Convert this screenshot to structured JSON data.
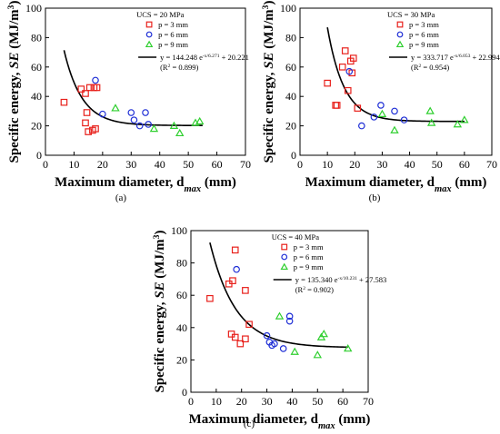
{
  "panels": {
    "a": {
      "label": "(a)"
    },
    "b": {
      "label": "(b)"
    },
    "c": {
      "label": "(c)"
    }
  },
  "chart_data": [
    {
      "id": "a",
      "type": "scatter",
      "xlabel": "Maximum diameter, d_max (mm)",
      "ylabel": "Specific energy, SE (MJ/m^3)",
      "xlim": [
        0,
        70
      ],
      "ylim": [
        0,
        100
      ],
      "xticks": [
        0,
        10,
        20,
        30,
        40,
        50,
        60,
        70
      ],
      "yticks": [
        0,
        20,
        40,
        60,
        80,
        100
      ],
      "grid": false,
      "legend_position": "top-right",
      "legend_title": "UCS = 20 MPa",
      "series": [
        {
          "name": "p = 3 mm",
          "marker": "square",
          "color": "#e8201b",
          "points": [
            [
              6.5,
              36
            ],
            [
              12.5,
              45
            ],
            [
              14,
              42
            ],
            [
              14,
              22
            ],
            [
              14.5,
              29
            ],
            [
              15,
              16
            ],
            [
              15.5,
              46
            ],
            [
              16.5,
              17
            ],
            [
              17,
              46
            ],
            [
              17.5,
              18
            ],
            [
              18,
              46
            ]
          ]
        },
        {
          "name": "p = 6 mm",
          "marker": "circle",
          "color": "#1f2fd6",
          "points": [
            [
              17.5,
              51
            ],
            [
              20,
              28
            ],
            [
              30,
              29
            ],
            [
              31,
              24
            ],
            [
              33,
              20
            ],
            [
              35,
              29
            ],
            [
              36,
              21
            ]
          ]
        },
        {
          "name": "p = 9 mm",
          "marker": "triangle",
          "color": "#2fcf2f",
          "points": [
            [
              24.5,
              32
            ],
            [
              38,
              18
            ],
            [
              45,
              20
            ],
            [
              47,
              15
            ],
            [
              52.5,
              22
            ],
            [
              54,
              23
            ]
          ]
        }
      ],
      "fit": {
        "label": "y = 144.248 e^{-x/6.271} + 20.221",
        "r2": "(R^2 = 0.899)",
        "A": 144.248,
        "t": 6.271,
        "c": 20.221,
        "xrange": [
          6.5,
          55
        ]
      }
    },
    {
      "id": "b",
      "type": "scatter",
      "xlabel": "Maximum diameter, d_max (mm)",
      "ylabel": "Specific energy, SE (MJ/m^3)",
      "xlim": [
        0,
        70
      ],
      "ylim": [
        0,
        100
      ],
      "xticks": [
        0,
        10,
        20,
        30,
        40,
        50,
        60,
        70
      ],
      "yticks": [
        0,
        20,
        40,
        60,
        80,
        100
      ],
      "grid": false,
      "legend_position": "top-right",
      "legend_title": "UCS = 30 MPa",
      "series": [
        {
          "name": "p = 3 mm",
          "marker": "square",
          "color": "#e8201b",
          "points": [
            [
              10,
              49
            ],
            [
              13,
              34
            ],
            [
              13.5,
              34
            ],
            [
              15.5,
              60
            ],
            [
              16.5,
              71
            ],
            [
              17.5,
              44
            ],
            [
              18.5,
              64
            ],
            [
              19,
              56
            ],
            [
              19.5,
              66
            ],
            [
              21,
              32
            ]
          ]
        },
        {
          "name": "p = 6 mm",
          "marker": "circle",
          "color": "#1f2fd6",
          "points": [
            [
              18,
              57
            ],
            [
              22.5,
              20
            ],
            [
              27,
              26
            ],
            [
              29.5,
              34
            ],
            [
              34.5,
              30
            ],
            [
              38,
              24
            ]
          ]
        },
        {
          "name": "p = 9 mm",
          "marker": "triangle",
          "color": "#2fcf2f",
          "points": [
            [
              30,
              28
            ],
            [
              34.5,
              17
            ],
            [
              47.5,
              30
            ],
            [
              48,
              22
            ],
            [
              57.5,
              21
            ],
            [
              60,
              24
            ]
          ]
        }
      ],
      "fit": {
        "label": "y = 333.717 e^{-x/6.053} + 22.994",
        "r2": "(R^2 = 0.954)",
        "A": 333.717,
        "t": 6.053,
        "c": 22.994,
        "xrange": [
          10,
          60
        ]
      }
    },
    {
      "id": "c",
      "type": "scatter",
      "xlabel": "Maximum diameter, d_max (mm)",
      "ylabel": "Specific energy, SE (MJ/m^3)",
      "xlim": [
        0,
        70
      ],
      "ylim": [
        0,
        100
      ],
      "xticks": [
        0,
        10,
        20,
        30,
        40,
        50,
        60,
        70
      ],
      "yticks": [
        0,
        20,
        40,
        60,
        80,
        100
      ],
      "grid": false,
      "legend_position": "top-right",
      "legend_title": "UCS = 40 MPa",
      "series": [
        {
          "name": "p = 3 mm",
          "marker": "square",
          "color": "#e8201b",
          "points": [
            [
              7.5,
              58
            ],
            [
              15,
              67
            ],
            [
              16,
              36
            ],
            [
              16.5,
              69
            ],
            [
              17.5,
              88
            ],
            [
              17.5,
              34
            ],
            [
              19.5,
              30
            ],
            [
              21.5,
              63
            ],
            [
              21.5,
              33
            ],
            [
              23,
              42
            ]
          ]
        },
        {
          "name": "p = 6 mm",
          "marker": "circle",
          "color": "#1f2fd6",
          "points": [
            [
              18,
              76
            ],
            [
              30,
              35
            ],
            [
              31,
              31
            ],
            [
              32,
              29
            ],
            [
              33,
              30
            ],
            [
              36.5,
              27
            ],
            [
              39,
              47
            ],
            [
              39,
              44
            ]
          ]
        },
        {
          "name": "p = 9 mm",
          "marker": "triangle",
          "color": "#2fcf2f",
          "points": [
            [
              35,
              47
            ],
            [
              41,
              25
            ],
            [
              50,
              23
            ],
            [
              51.5,
              34
            ],
            [
              52.5,
              36
            ],
            [
              62,
              27
            ]
          ]
        }
      ],
      "fit": {
        "label": "y = 135.340 e^{-x/10.231} + 27.583",
        "r2": "(R^2 = 0.902)",
        "A": 135.34,
        "t": 10.231,
        "c": 27.583,
        "xrange": [
          7.5,
          62
        ]
      }
    }
  ]
}
